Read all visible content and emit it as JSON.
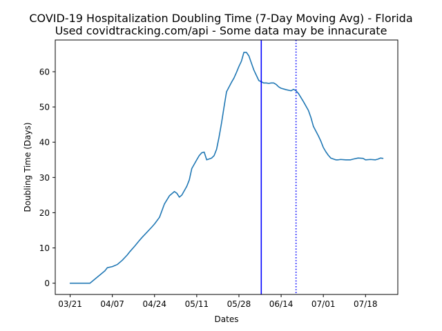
{
  "chart_data": {
    "type": "line",
    "title": "COVID-19 Hospitalization Doubling Time (7-Day Moving Avg) - Florida",
    "subtitle": "Used covidtracking.com/api - Some data may be innacurate",
    "xlabel": "Dates",
    "ylabel": "Doubling Time (Days)",
    "x_tick_labels": [
      "03/21",
      "04/07",
      "04/24",
      "05/11",
      "05/28",
      "06/14",
      "07/01",
      "07/18"
    ],
    "x_tick_dates": [
      "2020-03-21",
      "2020-04-07",
      "2020-04-24",
      "2020-05-11",
      "2020-05-28",
      "2020-06-14",
      "2020-07-01",
      "2020-07-18"
    ],
    "xlim": [
      "2020-03-15",
      "2020-07-31"
    ],
    "y_ticks": [
      0,
      10,
      20,
      30,
      40,
      50,
      60
    ],
    "ylim": [
      -3.2,
      69
    ],
    "grid": false,
    "line_color": "#1f77b4",
    "vlines": [
      {
        "x": "2020-06-06",
        "style": "solid",
        "color": "#0000ff"
      },
      {
        "x": "2020-06-20",
        "style": "dotted",
        "color": "#0000ff"
      }
    ],
    "series": [
      {
        "x": [
          "2020-03-21",
          "2020-03-29",
          "2020-04-04",
          "2020-04-05",
          "2020-04-07",
          "2020-04-09",
          "2020-04-11",
          "2020-04-13",
          "2020-04-14",
          "2020-04-16",
          "2020-04-18",
          "2020-04-19",
          "2020-04-21",
          "2020-04-23",
          "2020-04-24",
          "2020-04-26",
          "2020-04-28",
          "2020-04-30",
          "2020-05-02",
          "2020-05-03",
          "2020-05-04",
          "2020-05-05",
          "2020-05-07",
          "2020-05-08",
          "2020-05-09",
          "2020-05-11",
          "2020-05-12",
          "2020-05-13",
          "2020-05-14",
          "2020-05-15",
          "2020-05-17",
          "2020-05-18",
          "2020-05-19",
          "2020-05-20",
          "2020-05-21",
          "2020-05-22",
          "2020-05-23",
          "2020-05-25",
          "2020-05-26",
          "2020-05-27",
          "2020-05-28",
          "2020-05-29",
          "2020-05-30",
          "2020-05-31",
          "2020-06-01",
          "2020-06-02",
          "2020-06-03",
          "2020-06-05",
          "2020-06-07",
          "2020-06-08",
          "2020-06-09",
          "2020-06-10",
          "2020-06-11",
          "2020-06-12",
          "2020-06-13",
          "2020-06-14",
          "2020-06-16",
          "2020-06-18",
          "2020-06-19",
          "2020-06-20",
          "2020-06-21",
          "2020-06-23",
          "2020-06-25",
          "2020-06-26",
          "2020-06-27",
          "2020-06-29",
          "2020-06-30",
          "2020-07-01",
          "2020-07-02",
          "2020-07-03",
          "2020-07-04",
          "2020-07-06",
          "2020-07-07",
          "2020-07-08",
          "2020-07-10",
          "2020-07-12",
          "2020-07-13",
          "2020-07-15",
          "2020-07-17",
          "2020-07-18",
          "2020-07-20",
          "2020-07-22",
          "2020-07-23",
          "2020-07-24",
          "2020-07-25"
        ],
        "values": [
          0,
          0,
          3.5,
          4.4,
          4.7,
          5.3,
          6.5,
          8,
          8.9,
          10.5,
          12.2,
          13,
          14.5,
          16,
          16.8,
          18.7,
          22.5,
          24.8,
          26,
          25.5,
          24.4,
          25,
          27.5,
          29.3,
          32.5,
          35,
          36.2,
          37,
          37.2,
          35,
          35.5,
          36.2,
          38,
          41.5,
          45.5,
          50,
          54.3,
          57,
          58.2,
          59.8,
          61.5,
          63,
          65.5,
          65.5,
          64.5,
          62.5,
          60.5,
          57.5,
          56.8,
          56.8,
          56.7,
          56.8,
          56.8,
          56.4,
          55.7,
          55.3,
          54.9,
          54.6,
          55,
          54.6,
          53.8,
          51.5,
          49,
          47,
          44.5,
          41.8,
          40.3,
          38.5,
          37.3,
          36.3,
          35.5,
          35,
          35,
          35.1,
          35,
          35,
          35.2,
          35.5,
          35.4,
          35,
          35.1,
          35,
          35.2,
          35.5,
          35.4
        ]
      }
    ]
  }
}
